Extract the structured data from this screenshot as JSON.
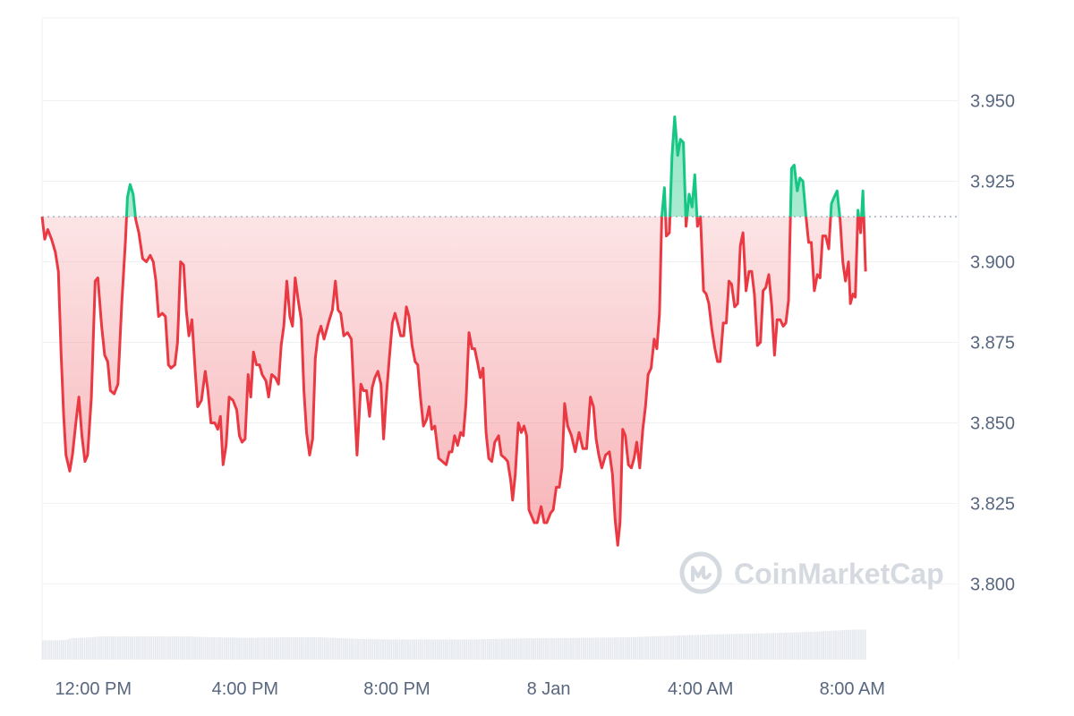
{
  "colors": {
    "up": "#16c784",
    "down": "#ea3943",
    "baseline": "#a6b0c3",
    "grid": "#eff2f5",
    "volume": "#e5e8ee",
    "tick_text": "#58667e",
    "watermark": "#d5d9e0"
  },
  "watermark": {
    "text": "CoinMarketCap",
    "icon": "coinmarketcap-logo-icon"
  },
  "chart_data": {
    "type": "area",
    "baseline": 3.914,
    "y_ticks": [
      "3.950",
      "3.925",
      "3.900",
      "3.875",
      "3.850",
      "3.825",
      "3.800"
    ],
    "ylim": [
      3.7765,
      3.9757
    ],
    "x_ticks": [
      "12:00 PM",
      "4:00 PM",
      "8:00 PM",
      "8 Jan",
      "4:00 AM",
      "8:00 AM"
    ],
    "x_tick_hours": [
      0,
      4,
      8,
      12,
      16,
      20
    ],
    "xlim_hours": [
      -1.35,
      22.8
    ],
    "grid": true,
    "series": [
      {
        "values": [
          [
            -1.35,
            3.914
          ],
          [
            -1.28,
            3.907
          ],
          [
            -1.2,
            3.91
          ],
          [
            -1.1,
            3.907
          ],
          [
            -1.0,
            3.903
          ],
          [
            -0.92,
            3.897
          ],
          [
            -0.85,
            3.872
          ],
          [
            -0.78,
            3.852
          ],
          [
            -0.72,
            3.84
          ],
          [
            -0.62,
            3.835
          ],
          [
            -0.55,
            3.84
          ],
          [
            -0.45,
            3.851
          ],
          [
            -0.38,
            3.858
          ],
          [
            -0.3,
            3.846
          ],
          [
            -0.22,
            3.838
          ],
          [
            -0.15,
            3.84
          ],
          [
            -0.05,
            3.858
          ],
          [
            0.05,
            3.894
          ],
          [
            0.12,
            3.895
          ],
          [
            0.22,
            3.88
          ],
          [
            0.3,
            3.871
          ],
          [
            0.38,
            3.869
          ],
          [
            0.45,
            3.86
          ],
          [
            0.55,
            3.859
          ],
          [
            0.65,
            3.862
          ],
          [
            0.75,
            3.887
          ],
          [
            0.85,
            3.907
          ],
          [
            0.9,
            3.92
          ],
          [
            0.97,
            3.924
          ],
          [
            1.05,
            3.921
          ],
          [
            1.12,
            3.913
          ],
          [
            1.2,
            3.909
          ],
          [
            1.3,
            3.901
          ],
          [
            1.4,
            3.9
          ],
          [
            1.5,
            3.902
          ],
          [
            1.58,
            3.9
          ],
          [
            1.65,
            3.894
          ],
          [
            1.72,
            3.883
          ],
          [
            1.82,
            3.884
          ],
          [
            1.9,
            3.883
          ],
          [
            1.98,
            3.868
          ],
          [
            2.05,
            3.867
          ],
          [
            2.15,
            3.868
          ],
          [
            2.22,
            3.875
          ],
          [
            2.3,
            3.9
          ],
          [
            2.38,
            3.899
          ],
          [
            2.45,
            3.885
          ],
          [
            2.52,
            3.877
          ],
          [
            2.6,
            3.882
          ],
          [
            2.68,
            3.867
          ],
          [
            2.75,
            3.855
          ],
          [
            2.85,
            3.857
          ],
          [
            2.95,
            3.866
          ],
          [
            3.02,
            3.86
          ],
          [
            3.1,
            3.85
          ],
          [
            3.2,
            3.85
          ],
          [
            3.28,
            3.848
          ],
          [
            3.35,
            3.852
          ],
          [
            3.42,
            3.837
          ],
          [
            3.5,
            3.843
          ],
          [
            3.58,
            3.858
          ],
          [
            3.68,
            3.857
          ],
          [
            3.78,
            3.854
          ],
          [
            3.85,
            3.846
          ],
          [
            3.92,
            3.844
          ],
          [
            4.0,
            3.845
          ],
          [
            4.08,
            3.865
          ],
          [
            4.15,
            3.858
          ],
          [
            4.22,
            3.872
          ],
          [
            4.3,
            3.868
          ],
          [
            4.38,
            3.868
          ],
          [
            4.45,
            3.865
          ],
          [
            4.55,
            3.863
          ],
          [
            4.62,
            3.858
          ],
          [
            4.7,
            3.865
          ],
          [
            4.8,
            3.864
          ],
          [
            4.88,
            3.862
          ],
          [
            4.95,
            3.874
          ],
          [
            5.02,
            3.88
          ],
          [
            5.1,
            3.894
          ],
          [
            5.18,
            3.883
          ],
          [
            5.25,
            3.88
          ],
          [
            5.32,
            3.895
          ],
          [
            5.4,
            3.888
          ],
          [
            5.48,
            3.882
          ],
          [
            5.55,
            3.86
          ],
          [
            5.62,
            3.847
          ],
          [
            5.7,
            3.84
          ],
          [
            5.78,
            3.845
          ],
          [
            5.85,
            3.87
          ],
          [
            5.92,
            3.877
          ],
          [
            6.0,
            3.88
          ],
          [
            6.08,
            3.876
          ],
          [
            6.15,
            3.879
          ],
          [
            6.22,
            3.882
          ],
          [
            6.3,
            3.885
          ],
          [
            6.38,
            3.894
          ],
          [
            6.45,
            3.885
          ],
          [
            6.52,
            3.884
          ],
          [
            6.6,
            3.877
          ],
          [
            6.7,
            3.878
          ],
          [
            6.8,
            3.876
          ],
          [
            6.88,
            3.856
          ],
          [
            6.95,
            3.84
          ],
          [
            7.05,
            3.862
          ],
          [
            7.12,
            3.86
          ],
          [
            7.2,
            3.86
          ],
          [
            7.28,
            3.852
          ],
          [
            7.35,
            3.861
          ],
          [
            7.42,
            3.864
          ],
          [
            7.5,
            3.866
          ],
          [
            7.58,
            3.862
          ],
          [
            7.65,
            3.845
          ],
          [
            7.72,
            3.858
          ],
          [
            7.8,
            3.87
          ],
          [
            7.88,
            3.881
          ],
          [
            7.95,
            3.884
          ],
          [
            8.02,
            3.881
          ],
          [
            8.1,
            3.877
          ],
          [
            8.18,
            3.877
          ],
          [
            8.25,
            3.886
          ],
          [
            8.32,
            3.883
          ],
          [
            8.4,
            3.874
          ],
          [
            8.48,
            3.869
          ],
          [
            8.55,
            3.868
          ],
          [
            8.62,
            3.858
          ],
          [
            8.7,
            3.849
          ],
          [
            8.78,
            3.851
          ],
          [
            8.85,
            3.855
          ],
          [
            8.92,
            3.848
          ],
          [
            9.0,
            3.849
          ],
          [
            9.1,
            3.839
          ],
          [
            9.2,
            3.838
          ],
          [
            9.3,
            3.837
          ],
          [
            9.38,
            3.841
          ],
          [
            9.45,
            3.841
          ],
          [
            9.52,
            3.846
          ],
          [
            9.6,
            3.843
          ],
          [
            9.68,
            3.847
          ],
          [
            9.75,
            3.846
          ],
          [
            9.82,
            3.856
          ],
          [
            9.9,
            3.878
          ],
          [
            9.98,
            3.873
          ],
          [
            10.05,
            3.873
          ],
          [
            10.12,
            3.869
          ],
          [
            10.2,
            3.864
          ],
          [
            10.27,
            3.867
          ],
          [
            10.35,
            3.847
          ],
          [
            10.42,
            3.839
          ],
          [
            10.5,
            3.838
          ],
          [
            10.58,
            3.844
          ],
          [
            10.68,
            3.846
          ],
          [
            10.75,
            3.84
          ],
          [
            10.85,
            3.839
          ],
          [
            10.92,
            3.838
          ],
          [
            11.0,
            3.832
          ],
          [
            11.05,
            3.826
          ],
          [
            11.12,
            3.834
          ],
          [
            11.2,
            3.85
          ],
          [
            11.28,
            3.847
          ],
          [
            11.35,
            3.849
          ],
          [
            11.42,
            3.846
          ],
          [
            11.48,
            3.823
          ],
          [
            11.55,
            3.821
          ],
          [
            11.62,
            3.819
          ],
          [
            11.7,
            3.819
          ],
          [
            11.8,
            3.824
          ],
          [
            11.88,
            3.819
          ],
          [
            11.95,
            3.819
          ],
          [
            12.05,
            3.822
          ],
          [
            12.12,
            3.823
          ],
          [
            12.2,
            3.83
          ],
          [
            12.28,
            3.83
          ],
          [
            12.35,
            3.836
          ],
          [
            12.42,
            3.856
          ],
          [
            12.5,
            3.849
          ],
          [
            12.6,
            3.846
          ],
          [
            12.7,
            3.841
          ],
          [
            12.8,
            3.847
          ],
          [
            12.9,
            3.842
          ],
          [
            13.0,
            3.842
          ],
          [
            13.1,
            3.858
          ],
          [
            13.18,
            3.855
          ],
          [
            13.25,
            3.845
          ],
          [
            13.32,
            3.84
          ],
          [
            13.4,
            3.836
          ],
          [
            13.5,
            3.84
          ],
          [
            13.6,
            3.841
          ],
          [
            13.68,
            3.834
          ],
          [
            13.75,
            3.82
          ],
          [
            13.82,
            3.812
          ],
          [
            13.88,
            3.819
          ],
          [
            13.95,
            3.848
          ],
          [
            14.02,
            3.846
          ],
          [
            14.1,
            3.837
          ],
          [
            14.18,
            3.836
          ],
          [
            14.25,
            3.839
          ],
          [
            14.32,
            3.844
          ],
          [
            14.4,
            3.836
          ],
          [
            14.48,
            3.848
          ],
          [
            14.55,
            3.855
          ],
          [
            14.62,
            3.865
          ],
          [
            14.7,
            3.867
          ],
          [
            14.78,
            3.876
          ],
          [
            14.85,
            3.873
          ],
          [
            14.92,
            3.884
          ],
          [
            14.98,
            3.914
          ],
          [
            15.05,
            3.923
          ],
          [
            15.1,
            3.908
          ],
          [
            15.18,
            3.909
          ],
          [
            15.25,
            3.933
          ],
          [
            15.32,
            3.945
          ],
          [
            15.4,
            3.933
          ],
          [
            15.47,
            3.938
          ],
          [
            15.55,
            3.937
          ],
          [
            15.62,
            3.911
          ],
          [
            15.7,
            3.921
          ],
          [
            15.78,
            3.917
          ],
          [
            15.85,
            3.927
          ],
          [
            15.92,
            3.911
          ],
          [
            16.0,
            3.914
          ],
          [
            16.08,
            3.891
          ],
          [
            16.15,
            3.89
          ],
          [
            16.22,
            3.887
          ],
          [
            16.3,
            3.879
          ],
          [
            16.38,
            3.873
          ],
          [
            16.45,
            3.869
          ],
          [
            16.52,
            3.869
          ],
          [
            16.6,
            3.881
          ],
          [
            16.68,
            3.881
          ],
          [
            16.75,
            3.894
          ],
          [
            16.82,
            3.893
          ],
          [
            16.9,
            3.886
          ],
          [
            16.98,
            3.887
          ],
          [
            17.05,
            3.905
          ],
          [
            17.12,
            3.909
          ],
          [
            17.2,
            3.891
          ],
          [
            17.28,
            3.897
          ],
          [
            17.35,
            3.897
          ],
          [
            17.42,
            3.89
          ],
          [
            17.5,
            3.874
          ],
          [
            17.58,
            3.875
          ],
          [
            17.65,
            3.891
          ],
          [
            17.72,
            3.892
          ],
          [
            17.8,
            3.896
          ],
          [
            17.88,
            3.886
          ],
          [
            17.95,
            3.871
          ],
          [
            18.02,
            3.882
          ],
          [
            18.1,
            3.882
          ],
          [
            18.18,
            3.88
          ],
          [
            18.25,
            3.881
          ],
          [
            18.32,
            3.888
          ],
          [
            18.4,
            3.929
          ],
          [
            18.47,
            3.93
          ],
          [
            18.55,
            3.922
          ],
          [
            18.62,
            3.926
          ],
          [
            18.7,
            3.925
          ],
          [
            18.78,
            3.914
          ],
          [
            18.85,
            3.906
          ],
          [
            18.92,
            3.906
          ],
          [
            19.0,
            3.891
          ],
          [
            19.08,
            3.896
          ],
          [
            19.15,
            3.895
          ],
          [
            19.22,
            3.908
          ],
          [
            19.3,
            3.908
          ],
          [
            19.38,
            3.904
          ],
          [
            19.45,
            3.918
          ],
          [
            19.52,
            3.92
          ],
          [
            19.6,
            3.922
          ],
          [
            19.68,
            3.913
          ],
          [
            19.75,
            3.9
          ],
          [
            19.82,
            3.894
          ],
          [
            19.9,
            3.9
          ],
          [
            19.95,
            3.887
          ],
          [
            20.02,
            3.89
          ],
          [
            20.08,
            3.889
          ],
          [
            20.15,
            3.916
          ],
          [
            20.22,
            3.909
          ],
          [
            20.28,
            3.922
          ],
          [
            20.35,
            3.897
          ]
        ]
      }
    ],
    "volume": [
      [
        -1.35,
        0.45
      ],
      [
        -0.9,
        0.45
      ],
      [
        -0.75,
        0.46
      ],
      [
        -0.6,
        0.5
      ],
      [
        -0.3,
        0.51
      ],
      [
        -0.1,
        0.52
      ],
      [
        0.2,
        0.54
      ],
      [
        1.0,
        0.54
      ],
      [
        2.0,
        0.54
      ],
      [
        2.5,
        0.54
      ],
      [
        2.8,
        0.53
      ],
      [
        3.2,
        0.52
      ],
      [
        4.0,
        0.51
      ],
      [
        5.0,
        0.52
      ],
      [
        6.0,
        0.52
      ],
      [
        6.5,
        0.5
      ],
      [
        7.0,
        0.48
      ],
      [
        8.0,
        0.47
      ],
      [
        9.0,
        0.47
      ],
      [
        10.0,
        0.47
      ],
      [
        10.5,
        0.48
      ],
      [
        11.0,
        0.49
      ],
      [
        12.0,
        0.5
      ],
      [
        13.0,
        0.51
      ],
      [
        14.0,
        0.52
      ],
      [
        15.0,
        0.55
      ],
      [
        16.0,
        0.58
      ],
      [
        17.0,
        0.6
      ],
      [
        18.0,
        0.62
      ],
      [
        19.0,
        0.65
      ],
      [
        20.0,
        0.7
      ],
      [
        20.35,
        0.7
      ]
    ]
  }
}
